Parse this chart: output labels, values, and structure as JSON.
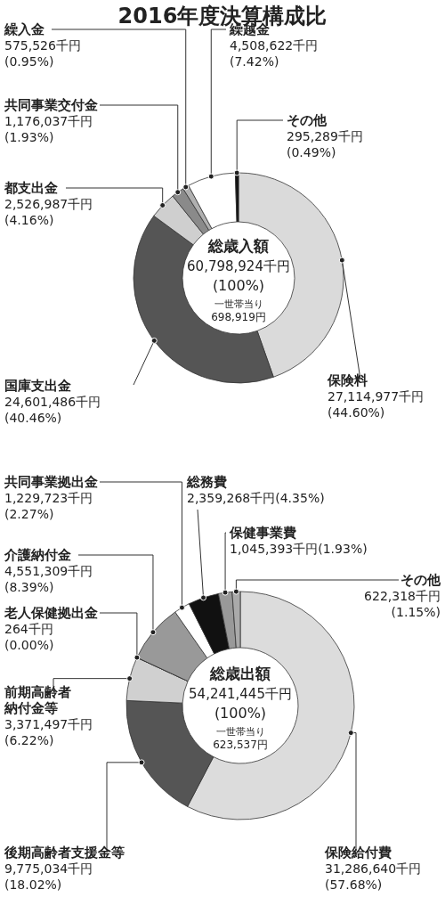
{
  "chart_data": [
    {
      "type": "donut",
      "title": "2016年度決算構成比",
      "categories": [
        "保険料",
        "国庫支出金",
        "都支出金",
        "共同事業交付金",
        "繰入金",
        "繰越金",
        "その他"
      ],
      "values": [
        27114977,
        24601486,
        2526987,
        1176037,
        575526,
        4508622,
        295289
      ],
      "colors": [
        "#dadada",
        "#555555",
        "#cfcfcf",
        "#8a8a8a",
        "#b0b0b0",
        "#ffffff",
        "#111111"
      ],
      "value_labels": [
        "27,114,977千円\n(44.60%)",
        "24,601,486千円\n(40.46%)",
        "2,526,987千円\n(4.16%)",
        "1,176,037千円\n(1.93%)",
        "575,526千円\n(0.95%)",
        "4,508,622千円\n(7.42%)",
        "295,289千円\n(0.49%)"
      ],
      "annotations": [
        "総歳入額",
        "60,798,924千円",
        "(100%)",
        "一世帯当り",
        "698,919円"
      ]
    },
    {
      "type": "donut",
      "categories": [
        "保険給付費",
        "後期高齢者支援金等",
        "前期高齢者納付金等",
        "老人保健拠出金",
        "介護納付金",
        "共同事業拠出金",
        "総務費",
        "保健事業費",
        "その他"
      ],
      "values": [
        31286640,
        9775034,
        3371497,
        264,
        4551309,
        1229723,
        2359268,
        1045393,
        622318
      ],
      "colors": [
        "#dcdcdc",
        "#555555",
        "#d0d0d0",
        "#aaaaaa",
        "#999999",
        "#ffffff",
        "#111111",
        "#999999",
        "#aaaaaa"
      ],
      "value_labels": [
        "31,286,640千円\n(57.68%)",
        "9,775,034千円\n(18.02%)",
        "3,371,497千円\n(6.22%)",
        "264千円\n(0.00%)",
        "4,551,309千円\n(8.39%)",
        "1,229,723千円\n(2.27%)",
        "2,359,268千円(4.35%)",
        "1,045,393千円(1.93%)",
        "622,318千円\n(1.15%)"
      ],
      "annotations": [
        "総歳出額",
        "54,241,445千円",
        "(100%)",
        "一世帯当り",
        "623,537円"
      ]
    }
  ]
}
